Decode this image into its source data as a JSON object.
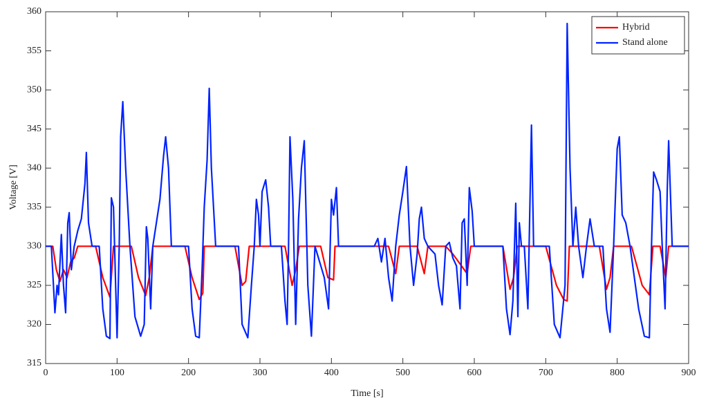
{
  "chart_data": {
    "type": "line",
    "xlabel": "Time [s]",
    "ylabel": "Voltage [V]",
    "xlim": [
      0,
      900
    ],
    "xticks": [
      0,
      100,
      200,
      300,
      400,
      500,
      600,
      700,
      800,
      900
    ],
    "ylim": [
      315,
      360
    ],
    "yticks": [
      315,
      320,
      325,
      330,
      335,
      340,
      345,
      350,
      355,
      360
    ],
    "grid": false,
    "legend": "upper right",
    "series": [
      {
        "name": "Hybrid",
        "color": "#ff0000",
        "x": [
          0,
          10,
          15,
          20,
          25,
          30,
          35,
          40,
          45,
          70,
          80,
          90,
          95,
          120,
          130,
          140,
          145,
          150,
          195,
          205,
          215,
          220,
          222,
          265,
          275,
          280,
          285,
          335,
          345,
          350,
          355,
          385,
          395,
          403,
          405,
          480,
          490,
          495,
          520,
          530,
          535,
          560,
          570,
          590,
          595,
          640,
          650,
          655,
          660,
          700,
          715,
          725,
          730,
          733,
          775,
          785,
          790,
          795,
          820,
          835,
          845,
          850,
          860,
          868,
          872,
          900
        ],
        "values": [
          330,
          330,
          327,
          325.5,
          327,
          326,
          328,
          328.5,
          330,
          330,
          326,
          323.5,
          330,
          330,
          326,
          323.7,
          326,
          330,
          330,
          326,
          323.2,
          324,
          330,
          330,
          325,
          325.5,
          330,
          330,
          325,
          327,
          330,
          330,
          326,
          325.7,
          330,
          330,
          326.5,
          330,
          330,
          326.5,
          330,
          330,
          329,
          326.5,
          330,
          330,
          324.5,
          326,
          330,
          330,
          325,
          323.2,
          323,
          330,
          330,
          324.5,
          326,
          330,
          330,
          325,
          323.8,
          330,
          330,
          326,
          330,
          330
        ]
      },
      {
        "name": "Stand alone",
        "color": "#0022ff",
        "x": [
          0,
          8,
          13,
          16,
          18,
          22,
          25,
          28,
          31,
          33,
          36,
          40,
          45,
          50,
          55,
          57,
          60,
          65,
          75,
          80,
          85,
          90,
          92,
          95,
          100,
          103,
          105,
          108,
          112,
          118,
          125,
          133,
          138,
          141,
          143,
          147,
          150,
          155,
          160,
          165,
          168,
          172,
          176,
          200,
          205,
          210,
          215,
          219,
          222,
          226,
          229,
          232,
          238,
          270,
          275,
          283,
          288,
          292,
          295,
          298,
          300,
          303,
          308,
          312,
          315,
          330,
          335,
          338,
          340,
          342,
          346,
          350,
          354,
          358,
          362,
          367,
          372,
          377,
          390,
          396,
          400,
          403,
          407,
          410,
          460,
          465,
          470,
          475,
          480,
          485,
          490,
          495,
          500,
          505,
          510,
          515,
          520,
          523,
          526,
          530,
          535,
          545,
          550,
          555,
          560,
          565,
          570,
          575,
          580,
          583,
          586,
          590,
          593,
          597,
          600,
          640,
          645,
          650,
          654,
          658,
          661,
          663,
          666,
          670,
          675,
          680,
          683,
          690,
          705,
          712,
          720,
          727,
          730,
          734,
          738,
          742,
          746,
          752,
          757,
          762,
          768,
          780,
          785,
          790,
          795,
          800,
          803,
          807,
          812,
          818,
          830,
          838,
          845,
          848,
          851,
          855,
          860,
          863,
          867,
          870,
          872,
          877,
          900
        ],
        "values": [
          330,
          330,
          321.5,
          325,
          323.8,
          331.5,
          325,
          321.5,
          333,
          334.3,
          327,
          330,
          332,
          333.5,
          338,
          342,
          333,
          330,
          330,
          322,
          318.5,
          318.2,
          336.2,
          335,
          318.3,
          330,
          344,
          348.5,
          340,
          330,
          321,
          318.5,
          320,
          332.5,
          331,
          322,
          330,
          333,
          336,
          341.5,
          344,
          340,
          330,
          330,
          322,
          318.5,
          318.3,
          327,
          335,
          341,
          350.2,
          340,
          330,
          330,
          320,
          318.3,
          325,
          330,
          336,
          334,
          330,
          337,
          338.5,
          335,
          330,
          330,
          323,
          320,
          330,
          344,
          336,
          320,
          333.5,
          340,
          343.5,
          325,
          318.5,
          330,
          326,
          322,
          336,
          334,
          337.5,
          330,
          330,
          331,
          328,
          331,
          326,
          323,
          330,
          334,
          337,
          340.2,
          330,
          325,
          329,
          333.5,
          335,
          331,
          330,
          329,
          325,
          322.5,
          330,
          330.5,
          328.5,
          327.5,
          322,
          333,
          333.5,
          325,
          337.5,
          334.5,
          330,
          330,
          322,
          318.7,
          323,
          335.5,
          321,
          333,
          330,
          330,
          322,
          345.5,
          330,
          330,
          330,
          320,
          318.3,
          325,
          358.5,
          340,
          330,
          335,
          330,
          326,
          330,
          333.5,
          330,
          330,
          322,
          319,
          330,
          342.5,
          344,
          334,
          333,
          330,
          322,
          318.5,
          318.3,
          330,
          339.5,
          338.5,
          337,
          330,
          322,
          337,
          343.5,
          330,
          330
        ]
      }
    ]
  }
}
